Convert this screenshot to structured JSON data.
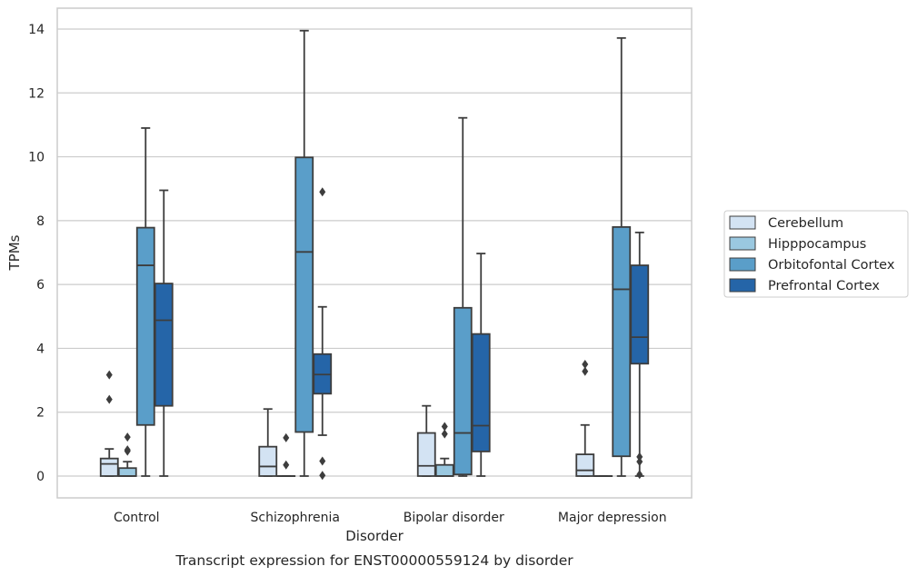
{
  "chart_data": {
    "type": "boxplot",
    "title": "",
    "caption": "Transcript expression for ENST00000559124 by disorder",
    "xlabel": "Disorder",
    "ylabel": "TPMs",
    "ylim": [
      -0.65,
      14.6
    ],
    "yticks": [
      0,
      2,
      4,
      6,
      8,
      10,
      12,
      14
    ],
    "grid": true,
    "legend_position": "right",
    "categories": [
      "Control",
      "Schizophrenia",
      "Bipolar disorder",
      "Major depression"
    ],
    "series": [
      {
        "name": "Cerebellum",
        "color": "#d3e3f3",
        "boxes": [
          {
            "whislo": 0,
            "q1": 0,
            "med": 0.38,
            "q3": 0.55,
            "whishi": 0.85,
            "fliers": [
              2.4,
              3.17
            ]
          },
          {
            "whislo": 0,
            "q1": 0,
            "med": 0.3,
            "q3": 0.92,
            "whishi": 2.1,
            "fliers": []
          },
          {
            "whislo": 0,
            "q1": 0,
            "med": 0.32,
            "q3": 1.35,
            "whishi": 2.2,
            "fliers": []
          },
          {
            "whislo": 0,
            "q1": 0,
            "med": 0.18,
            "q3": 0.68,
            "whishi": 1.6,
            "fliers": [
              3.28,
              3.5
            ]
          }
        ]
      },
      {
        "name": "Hipppocampus",
        "color": "#9ac8e0",
        "boxes": [
          {
            "whislo": 0,
            "q1": 0,
            "med": 0,
            "q3": 0.25,
            "whishi": 0.45,
            "fliers": [
              0.78,
              0.82,
              1.22
            ]
          },
          {
            "whislo": 0,
            "q1": 0,
            "med": 0,
            "q3": 0,
            "whishi": 0,
            "fliers": [
              0.35,
              1.2
            ]
          },
          {
            "whislo": 0,
            "q1": 0,
            "med": 0,
            "q3": 0.35,
            "whishi": 0.55,
            "fliers": [
              1.32,
              1.55
            ]
          },
          {
            "whislo": 0,
            "q1": 0,
            "med": 0,
            "q3": 0,
            "whishi": 0,
            "fliers": []
          }
        ]
      },
      {
        "name": "Orbitofontal Cortex",
        "color": "#5a9ec9",
        "boxes": [
          {
            "whislo": 0,
            "q1": 1.6,
            "med": 6.6,
            "q3": 7.78,
            "whishi": 10.9,
            "fliers": []
          },
          {
            "whislo": 0,
            "q1": 1.38,
            "med": 7.02,
            "q3": 9.98,
            "whishi": 13.95,
            "fliers": []
          },
          {
            "whislo": 0,
            "q1": 0.05,
            "med": 1.35,
            "q3": 5.27,
            "whishi": 11.22,
            "fliers": []
          },
          {
            "whislo": 0,
            "q1": 0.62,
            "med": 5.85,
            "q3": 7.8,
            "whishi": 13.72,
            "fliers": []
          }
        ]
      },
      {
        "name": "Prefrontal Cortex",
        "color": "#2565a8",
        "boxes": [
          {
            "whislo": 0,
            "q1": 2.2,
            "med": 4.88,
            "q3": 6.03,
            "whishi": 8.95,
            "fliers": []
          },
          {
            "whislo": 1.28,
            "q1": 2.58,
            "med": 3.18,
            "q3": 3.82,
            "whishi": 5.3,
            "fliers": [
              0.02,
              0.47,
              8.9
            ]
          },
          {
            "whislo": 0,
            "q1": 0.77,
            "med": 1.58,
            "q3": 4.45,
            "whishi": 6.97,
            "fliers": []
          },
          {
            "whislo": 0,
            "q1": 3.52,
            "med": 4.35,
            "q3": 6.6,
            "whishi": 7.63,
            "fliers": [
              0.05,
              0.45,
              0.6
            ]
          }
        ]
      }
    ]
  }
}
